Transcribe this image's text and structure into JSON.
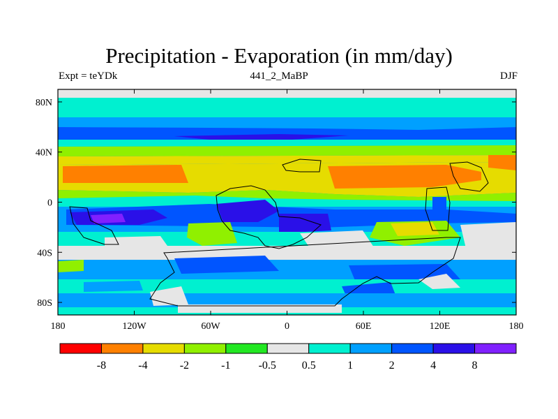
{
  "header": {
    "title": "Precipitation - Evaporation (in mm/day)",
    "left_label": "Expt = teYDk",
    "center_label": "441_2_MaBP",
    "right_label": "DJF"
  },
  "map": {
    "projection": "cylindrical-equidistant",
    "lon_range": [
      -180,
      180
    ],
    "lat_range": [
      -90,
      90
    ],
    "lon_ticks": [
      {
        "value": -180,
        "label": "180"
      },
      {
        "value": -120,
        "label": "120W"
      },
      {
        "value": -60,
        "label": "60W"
      },
      {
        "value": 0,
        "label": "0"
      },
      {
        "value": 60,
        "label": "60E"
      },
      {
        "value": 120,
        "label": "120E"
      },
      {
        "value": 180,
        "label": "180"
      }
    ],
    "lat_ticks": [
      {
        "value": 80,
        "label": "80N"
      },
      {
        "value": 40,
        "label": "40N"
      },
      {
        "value": 0,
        "label": "0"
      },
      {
        "value": -40,
        "label": "40S"
      },
      {
        "value": -80,
        "label": "80S"
      }
    ]
  },
  "colorbar": {
    "colors": [
      "#ff0000",
      "#ff8000",
      "#e6dc00",
      "#90f000",
      "#22e822",
      "#e6e6e6",
      "#00f0d0",
      "#00a0ff",
      "#0055ff",
      "#2a10e8",
      "#8020ff"
    ],
    "labels": [
      "-8",
      "-4",
      "-2",
      "-1",
      "-0.5",
      "0.5",
      "1",
      "2",
      "4",
      "8"
    ]
  }
}
